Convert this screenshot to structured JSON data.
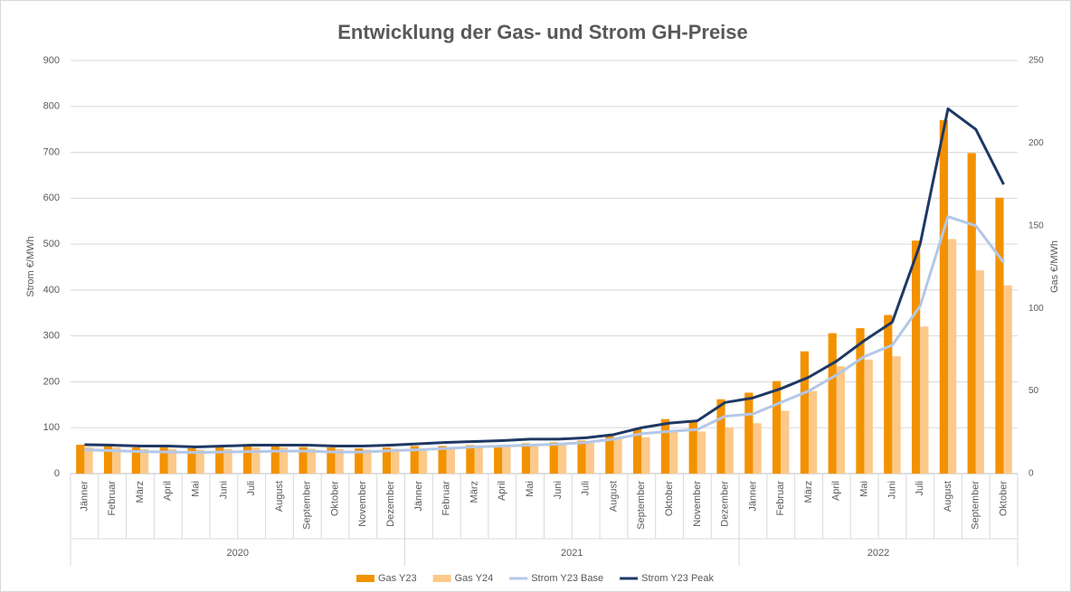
{
  "chart_data": {
    "type": "bar_line",
    "title": "Entwicklung der Gas- und Strom GH-Preise",
    "y_label": "Strom €/MWh",
    "y2_label": "Gas €/MWh",
    "category_groups": [
      {
        "name": "2020",
        "categories": [
          "Jänner",
          "Februar",
          "März",
          "April",
          "Mai",
          "Juni",
          "Juli",
          "August",
          "September",
          "Oktober",
          "November",
          "Dezember"
        ]
      },
      {
        "name": "2021",
        "categories": [
          "Jänner",
          "Februar",
          "März",
          "April",
          "Mai",
          "Juni",
          "Juli",
          "August",
          "September",
          "Oktober",
          "November",
          "Dezember"
        ]
      },
      {
        "name": "2022",
        "categories": [
          "Jänner",
          "Februar",
          "März",
          "April",
          "Mai",
          "Juni",
          "Juli",
          "August",
          "September",
          "Oktober"
        ]
      }
    ],
    "ylim": [
      0,
      900
    ],
    "yticks": [
      0,
      100,
      200,
      300,
      400,
      500,
      600,
      700,
      800,
      900
    ],
    "y2lim": [
      0,
      250
    ],
    "y2ticks": [
      0,
      50,
      100,
      150,
      200,
      250
    ],
    "grid": true,
    "legend": "bottom",
    "series": [
      {
        "name": "Gas Y23",
        "type": "bar",
        "axis": "y2",
        "color": "#f39200",
        "values": [
          17.5,
          16.7,
          15.8,
          15.8,
          15.3,
          16.1,
          16.7,
          16.7,
          16.1,
          15.8,
          15.3,
          15.8,
          16.7,
          16.7,
          17.2,
          16.7,
          18.3,
          18.9,
          20,
          23,
          27,
          33,
          32,
          45,
          49,
          56,
          74,
          85,
          88,
          96,
          141,
          214,
          194,
          167
        ]
      },
      {
        "name": "Gas Y24",
        "type": "bar",
        "axis": "y2",
        "color": "#fcc98a",
        "values": [
          16,
          16,
          15,
          15,
          14.5,
          15,
          16,
          16,
          15,
          15,
          14.5,
          15,
          15,
          15,
          16,
          16,
          17,
          17.5,
          18.5,
          21,
          22,
          25.5,
          25.5,
          28,
          30.5,
          38,
          50,
          65,
          69,
          71,
          89,
          142,
          123,
          114
        ]
      },
      {
        "name": "Strom Y23 Base",
        "type": "line",
        "color": "#b4c7e7",
        "values": [
          52,
          50,
          48,
          47,
          46,
          47,
          48,
          49,
          49,
          47,
          47,
          50,
          52,
          55,
          58,
          60,
          62,
          64,
          68,
          75,
          87,
          92,
          96,
          125,
          130,
          155,
          180,
          215,
          255,
          280,
          365,
          560,
          540,
          460
        ]
      },
      {
        "name": "Strom Y23 Peak",
        "type": "line",
        "color": "#1f3864",
        "values": [
          63,
          62,
          60,
          60,
          58,
          60,
          62,
          62,
          62,
          60,
          60,
          62,
          65,
          68,
          70,
          72,
          75,
          75,
          78,
          85,
          100,
          110,
          115,
          155,
          165,
          185,
          210,
          245,
          290,
          330,
          500,
          795,
          750,
          630
        ]
      }
    ]
  }
}
